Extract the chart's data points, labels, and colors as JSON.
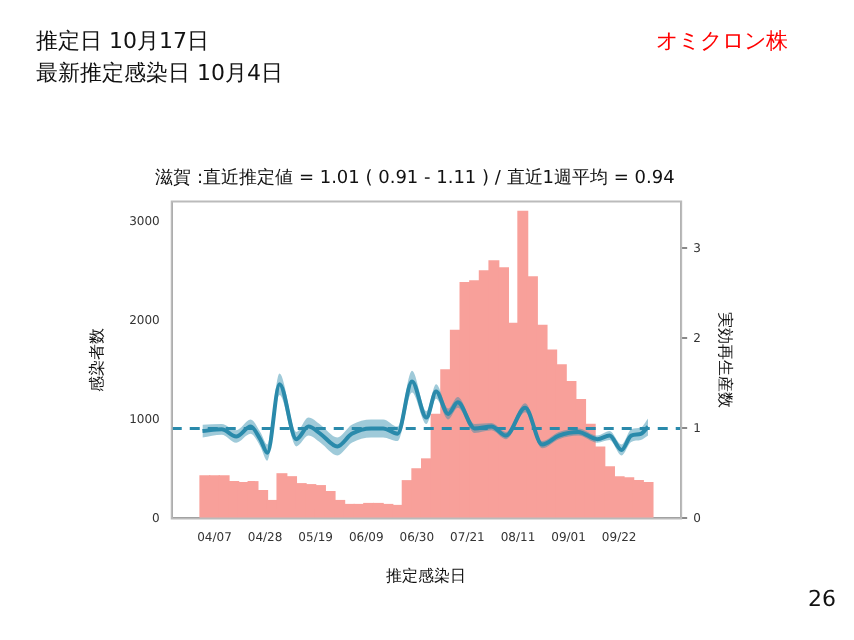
{
  "chart_data": {
    "type": "bar",
    "title": "滋賀 :直近推定値 = 1.01 ( 0.91 - 1.11 ) / 直近1週平均 = 0.94",
    "xlabel": "推定感染日",
    "ylabel": "感染者数",
    "y2label": "実効再生産数",
    "annotations": [
      "推定日  10月17日",
      "最新推定感染日  10月4日",
      "オミクロン株",
      "26"
    ],
    "xlim": [
      "--04-01",
      "--10-06"
    ],
    "xticks": [
      {
        "value": "--04-07",
        "label": "04/07"
      },
      {
        "value": "--04-28",
        "label": "04/28"
      },
      {
        "value": "--05-19",
        "label": "05/19"
      },
      {
        "value": "--06-09",
        "label": "06/09"
      },
      {
        "value": "--06-30",
        "label": "06/30"
      },
      {
        "value": "--07-21",
        "label": "07/21"
      },
      {
        "value": "--08-11",
        "label": "08/11"
      },
      {
        "value": "--09-01",
        "label": "09/01"
      },
      {
        "value": "--09-22",
        "label": "09/22"
      }
    ],
    "ylim": [
      0,
      3200
    ],
    "yticks": [
      0,
      1000,
      2000,
      3000
    ],
    "y2lim": [
      0,
      3.52
    ],
    "y2ticks": [
      0,
      1,
      2,
      3
    ],
    "grid": false,
    "legend": false,
    "ref_lines": [
      {
        "axis": "y2",
        "value": 1,
        "color": "#2a8aab",
        "line_style": "dashed"
      }
    ],
    "series": [
      {
        "color": "#f8a09a",
        "x": [
          "--04-03",
          "--04-07",
          "--04-11",
          "--04-15",
          "--04-19",
          "--04-23",
          "--04-27",
          "--05-01",
          "--05-05",
          "--05-09",
          "--05-13",
          "--05-17",
          "--05-21",
          "--05-25",
          "--05-29",
          "--06-02",
          "--06-06",
          "--06-10",
          "--06-14",
          "--06-18",
          "--06-22",
          "--06-26",
          "--06-30",
          "--07-04",
          "--07-08",
          "--07-12",
          "--07-16",
          "--07-20",
          "--07-24",
          "--07-28",
          "--08-01",
          "--08-05",
          "--08-09",
          "--08-13",
          "--08-17",
          "--08-21",
          "--08-25",
          "--08-29",
          "--09-02",
          "--09-06",
          "--09-10",
          "--09-14",
          "--09-18",
          "--09-22",
          "--09-26",
          "--09-30",
          "--10-04"
        ],
        "values": [
          430,
          430,
          430,
          370,
          360,
          370,
          280,
          180,
          450,
          420,
          350,
          340,
          330,
          270,
          180,
          140,
          140,
          150,
          150,
          140,
          130,
          380,
          500,
          600,
          1050,
          1500,
          1900,
          2380,
          2400,
          2500,
          2600,
          2530,
          1970,
          3100,
          2440,
          1950,
          1700,
          1550,
          1380,
          1200,
          950,
          720,
          520,
          420,
          410,
          380,
          360
        ]
      },
      {
        "type": "line",
        "axis": "y2",
        "color": "#2a8aab",
        "x": [
          "--04-02",
          "--04-10",
          "--04-16",
          "--04-22",
          "--04-26",
          "--04-29",
          "--05-04",
          "--05-11",
          "--05-16",
          "--05-21",
          "--05-28",
          "--06-03",
          "--06-11",
          "--06-16",
          "--06-22",
          "--06-28",
          "--07-04",
          "--07-08",
          "--07-13",
          "--07-17",
          "--07-24",
          "--07-31",
          "--08-06",
          "--08-14",
          "--08-21",
          "--08-28",
          "--09-05",
          "--09-13",
          "--09-18",
          "--09-23",
          "--09-27",
          "--10-01",
          "--10-04"
        ],
        "values": [
          0.97,
          0.99,
          0.91,
          1.02,
          0.88,
          0.73,
          1.49,
          0.88,
          1.02,
          0.94,
          0.8,
          0.94,
          1.0,
          1.0,
          0.94,
          1.52,
          1.12,
          1.41,
          1.16,
          1.29,
          1.0,
          1.02,
          0.92,
          1.23,
          0.82,
          0.92,
          0.96,
          0.88,
          0.92,
          0.76,
          0.92,
          0.94,
          1.02
        ],
        "lower": [
          0.9,
          0.93,
          0.84,
          0.94,
          0.8,
          0.64,
          1.37,
          0.8,
          0.92,
          0.84,
          0.7,
          0.84,
          0.9,
          0.9,
          0.86,
          1.4,
          1.05,
          1.33,
          1.1,
          1.23,
          0.95,
          0.98,
          0.88,
          1.18,
          0.78,
          0.88,
          0.92,
          0.84,
          0.87,
          0.7,
          0.85,
          0.87,
          0.92
        ],
        "upper": [
          1.04,
          1.05,
          0.98,
          1.1,
          0.96,
          0.82,
          1.61,
          0.96,
          1.12,
          1.04,
          0.9,
          1.04,
          1.1,
          1.1,
          1.02,
          1.64,
          1.19,
          1.49,
          1.22,
          1.35,
          1.05,
          1.06,
          0.96,
          1.28,
          0.86,
          0.96,
          1.0,
          0.92,
          0.97,
          0.82,
          0.99,
          1.01,
          1.11
        ]
      }
    ]
  }
}
